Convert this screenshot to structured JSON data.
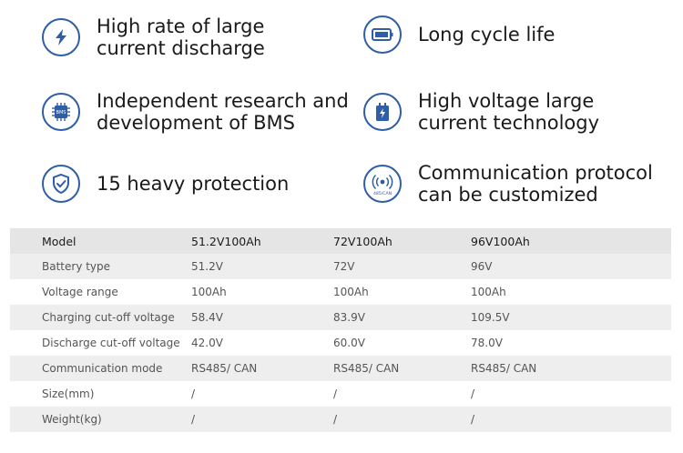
{
  "features": [
    {
      "icon": "lightning-icon",
      "text": "High rate of large\ncurrent discharge"
    },
    {
      "icon": "battery-icon",
      "text": "Long cycle life"
    },
    {
      "icon": "bms-chip-icon",
      "text": "Independent research and\ndevelopment of BMS",
      "chip_label": "BMS"
    },
    {
      "icon": "high-voltage-battery-icon",
      "text": "High voltage large\ncurrent technology"
    },
    {
      "icon": "shield-check-icon",
      "text": "15 heavy protection"
    },
    {
      "icon": "communication-icon",
      "text": "Communication protocol\ncan be customized",
      "icon_label": "485/CAN"
    }
  ],
  "table": {
    "header": [
      "Model",
      "51.2V100Ah",
      "72V100Ah",
      "96V100Ah"
    ],
    "rows": [
      [
        "Battery type",
        "51.2V",
        "72V",
        "96V"
      ],
      [
        "Voltage range",
        "100Ah",
        "100Ah",
        "100Ah"
      ],
      [
        "Charging cut-off voltage",
        "58.4V",
        "83.9V",
        "109.5V"
      ],
      [
        "Discharge cut-off voltage",
        "42.0V",
        "60.0V",
        "78.0V"
      ],
      [
        "Communication mode",
        "RS485/ CAN",
        "RS485/ CAN",
        "RS485/ CAN"
      ],
      [
        "Size(mm)",
        "/",
        "/",
        "/"
      ],
      [
        "Weight(kg)",
        "/",
        "/",
        "/"
      ]
    ]
  },
  "colors": {
    "icon_blue": "#2f5ea6",
    "row_shade": "#eeeeee"
  }
}
